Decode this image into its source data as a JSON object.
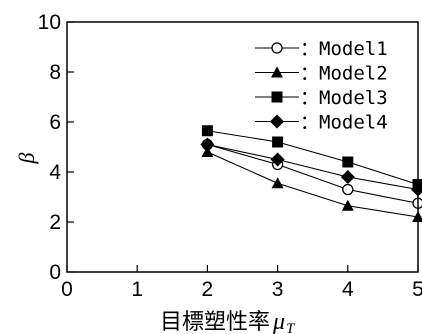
{
  "chart_data": {
    "type": "line",
    "xlabel": "目標塑性率",
    "xlabel_symbol": "μ",
    "xlabel_subscript": "T",
    "ylabel": "β",
    "xlim": [
      0,
      5
    ],
    "ylim": [
      0,
      10
    ],
    "x_ticks": [
      "0",
      "1",
      "2",
      "3",
      "4",
      "5"
    ],
    "y_ticks": [
      "0",
      "2",
      "4",
      "6",
      "8",
      "10"
    ],
    "grid": false,
    "legend_position": "top-right",
    "series": [
      {
        "name": "：Model1",
        "marker": "open-circle",
        "x": [
          2,
          3,
          4,
          5
        ],
        "y": [
          5.1,
          4.3,
          3.3,
          2.75
        ]
      },
      {
        "name": "：Model2",
        "marker": "triangle",
        "x": [
          2,
          3,
          4,
          5
        ],
        "y": [
          4.8,
          3.55,
          2.65,
          2.2
        ]
      },
      {
        "name": "：Model3",
        "marker": "square",
        "x": [
          2,
          3,
          4,
          5
        ],
        "y": [
          5.65,
          5.2,
          4.4,
          3.5
        ]
      },
      {
        "name": "：Model4",
        "marker": "diamond",
        "x": [
          2,
          3,
          4,
          5
        ],
        "y": [
          5.1,
          4.5,
          3.8,
          3.3
        ]
      }
    ]
  }
}
